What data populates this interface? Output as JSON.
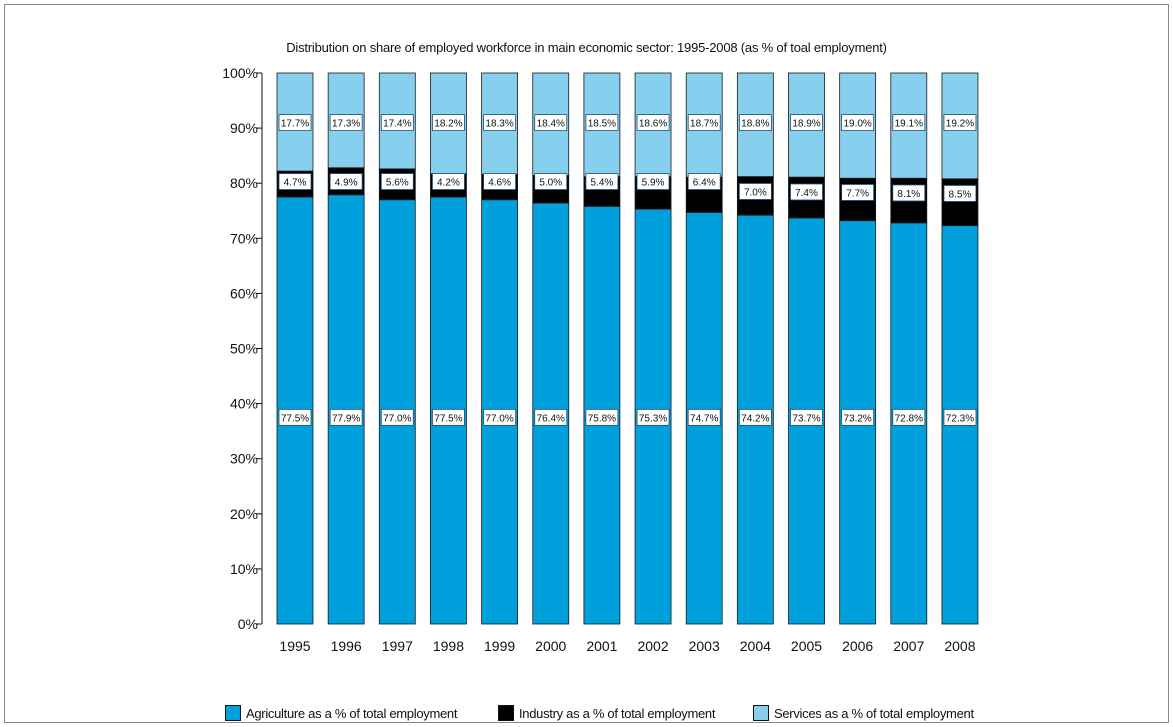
{
  "chart_data": {
    "type": "bar",
    "stacked": true,
    "title": "Distribution on share of employed workforce in main economic sector: 1995-2008 (as % of toal employment)",
    "categories": [
      "1995",
      "1996",
      "1997",
      "1998",
      "1999",
      "2000",
      "2001",
      "2002",
      "2003",
      "2004",
      "2005",
      "2006",
      "2007",
      "2008"
    ],
    "series": [
      {
        "name": "Agriculture as a % of total employment",
        "color": "#00a0dc",
        "values": [
          77.5,
          77.9,
          77.0,
          77.5,
          77.0,
          76.4,
          75.8,
          75.3,
          74.7,
          74.2,
          73.7,
          73.2,
          72.8,
          72.3
        ],
        "labels": [
          "77.5%",
          "77.9%",
          "77.0%",
          "77.5%",
          "77.0%",
          "76.4%",
          "75.8%",
          "75.3%",
          "74.7%",
          "74.2%",
          "73.7%",
          "73.2%",
          "72.8%",
          "72.3%"
        ]
      },
      {
        "name": "Industry as a % of total employment",
        "color": "#000000",
        "values": [
          4.7,
          4.9,
          5.6,
          4.2,
          4.6,
          5.0,
          5.4,
          5.9,
          6.4,
          7.0,
          7.4,
          7.7,
          8.1,
          8.5
        ],
        "labels": [
          "4.7%",
          "4.9%",
          "5.6%",
          "4.2%",
          "4.6%",
          "5.0%",
          "5.4%",
          "5.9%",
          "6.4%",
          "7.0%",
          "7.4%",
          "7.7%",
          "8.1%",
          "8.5%"
        ]
      },
      {
        "name": "Services as a % of total employment",
        "color": "#87cfee",
        "values": [
          17.7,
          17.3,
          17.4,
          18.2,
          18.3,
          18.4,
          18.5,
          18.6,
          18.7,
          18.8,
          18.9,
          19.0,
          19.1,
          19.2
        ],
        "labels": [
          "17.7%",
          "17.3%",
          "17.4%",
          "18.2%",
          "18.3%",
          "18.4%",
          "18.5%",
          "18.6%",
          "18.7%",
          "18.8%",
          "18.9%",
          "19.0%",
          "19.1%",
          "19.2%"
        ]
      }
    ],
    "ylim": [
      0,
      100
    ],
    "yticks": [
      "0%",
      "10%",
      "20%",
      "30%",
      "40%",
      "50%",
      "60%",
      "70%",
      "80%",
      "90%",
      "100%"
    ],
    "xlabel": "",
    "ylabel": "",
    "grid": false,
    "legend_position": "bottom"
  }
}
